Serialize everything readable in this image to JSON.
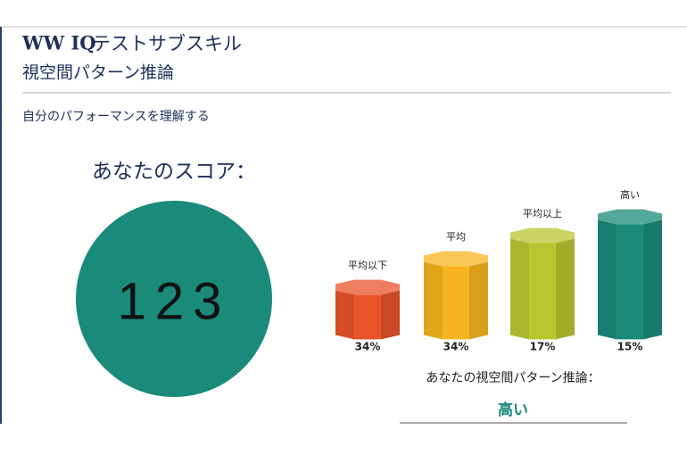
{
  "header": {
    "brand": "WW IQ",
    "title": "テストサブスキル",
    "subtitle": "視空間パターン推論"
  },
  "section": {
    "heading": "自分のパフォーマンスを理解する"
  },
  "score": {
    "label": "あなたのスコア：",
    "value": 123
  },
  "bars": [
    {
      "label": "平均以下",
      "percent": "34%",
      "color": "#e8532a"
    },
    {
      "label": "平均",
      "percent": "34%",
      "color": "#f6b51e"
    },
    {
      "label": "平均以上",
      "percent": "17%",
      "color": "#b9c630"
    },
    {
      "label": "高い",
      "percent": "15%",
      "color": "#1a8a7a"
    }
  ],
  "result": {
    "label": "あなたの視空間パターン推論：",
    "value": "高い"
  }
}
